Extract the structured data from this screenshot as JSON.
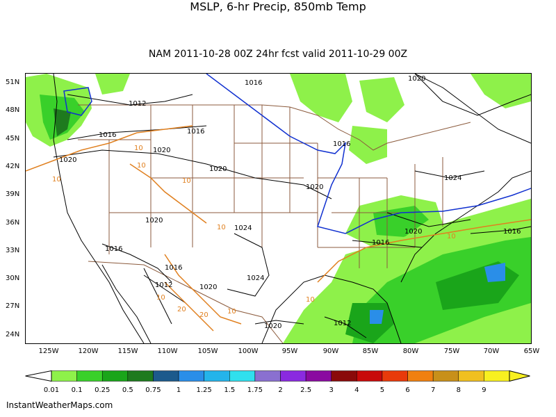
{
  "title": "MSLP, 6-hr Precip, 850mb Temp",
  "subtitle": "NAM 2011-10-28 00Z 24hr fcst valid 2011-10-29 00Z",
  "credit": "InstantWeatherMaps.com",
  "lat_labels": [
    "51N",
    "48N",
    "45N",
    "42N",
    "39N",
    "36N",
    "33N",
    "30N",
    "27N",
    "24N"
  ],
  "lon_labels": [
    "125W",
    "120W",
    "115W",
    "110W",
    "105W",
    "100W",
    "95W",
    "90W",
    "85W",
    "80W",
    "75W",
    "70W",
    "65W"
  ],
  "isobar_labels": [
    "1016",
    "1020",
    "1012",
    "1016",
    "1016",
    "1020",
    "1016",
    "1020",
    "1020",
    "1020",
    "1024",
    "1020",
    "1020",
    "1024",
    "1016",
    "1016",
    "1016",
    "1024",
    "1012",
    "1020",
    "1020",
    "1012",
    "1016"
  ],
  "temp_labels": [
    "10",
    "10",
    "10",
    "10",
    "10",
    "10",
    "10",
    "10",
    "20",
    "20",
    "10"
  ],
  "colors": {
    "isobar": "#000000",
    "freezing_line": "#1030d0",
    "temp_contour": "#e08020",
    "border": "#8b5a3c",
    "coast": "#000000"
  },
  "colorbar": {
    "labels": [
      "0.01",
      "0.1",
      "0.25",
      "0.5",
      "0.75",
      "1",
      "1.25",
      "1.5",
      "1.75",
      "2",
      "2.5",
      "3",
      "4",
      "5",
      "6",
      "7",
      "8",
      "9"
    ],
    "colors": [
      "#8ef14a",
      "#39d02a",
      "#1aa51a",
      "#1e7a1e",
      "#1c5a8c",
      "#2a8ee8",
      "#24b4ea",
      "#30e0ee",
      "#8a70d0",
      "#8a2ae0",
      "#8a0aa0",
      "#8a0a0a",
      "#c80a0a",
      "#e83a0a",
      "#f08010",
      "#c8901a",
      "#f0c020",
      "#f8f020"
    ]
  }
}
